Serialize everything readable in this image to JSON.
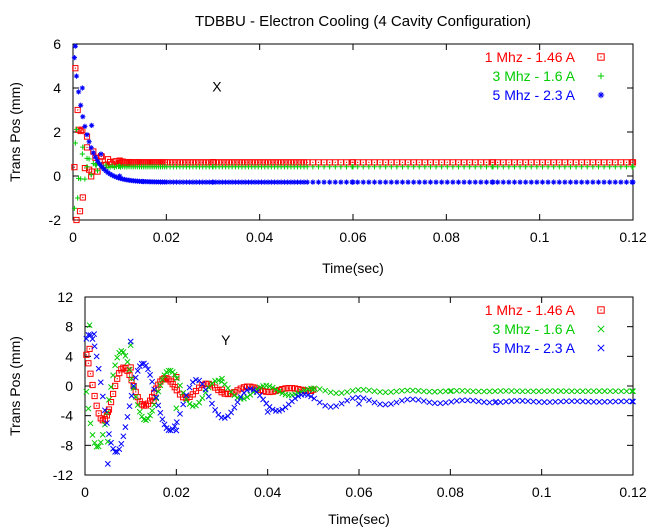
{
  "figure_title": "TDBBU - Electron Cooling (4 Cavity Configuration)",
  "chart_data": [
    {
      "type": "scatter",
      "panel_label": "X",
      "title": "TDBBU - Electron Cooling (4 Cavity Configuration)",
      "xlabel": "Time(sec)",
      "ylabel": "Trans Pos (mm)",
      "xlim": [
        0,
        0.12
      ],
      "ylim": [
        -2,
        6
      ],
      "xticks": [
        "0",
        "0.02",
        "0.04",
        "0.06",
        "0.08",
        "0.1",
        "0.12"
      ],
      "yticks": [
        "-2",
        "0",
        "2",
        "4",
        "6"
      ],
      "grid": false,
      "legend_position": "top-right",
      "series": [
        {
          "name": "1 Mhz - 1.46 A",
          "color": "#ff0000",
          "marker": "square",
          "model": {
            "kind": "decaying_oscillation",
            "steady": 0.62,
            "amp": 4.6,
            "tau": 0.0022,
            "freq": 650,
            "phase": 0.4,
            "x_end": 0.12
          },
          "points": [
            [
              0.0005,
              4.9
            ],
            [
              0.001,
              3.0
            ],
            [
              0.0015,
              -1.6
            ],
            [
              0.002,
              2.1
            ],
            [
              0.003,
              1.3
            ],
            [
              0.004,
              0.2
            ],
            [
              0.006,
              0.9
            ],
            [
              0.01,
              0.7
            ],
            [
              0.03,
              0.63
            ],
            [
              0.06,
              0.62
            ],
            [
              0.09,
              0.62
            ],
            [
              0.12,
              0.62
            ]
          ]
        },
        {
          "name": "3 Mhz - 1.6 A",
          "color": "#00cc00",
          "marker": "plus",
          "model": {
            "kind": "decaying_oscillation",
            "steady": 0.42,
            "amp": 2.6,
            "tau": 0.002,
            "freq": 800,
            "phase": 2.2,
            "x_end": 0.12
          },
          "points": [
            [
              0.0005,
              1.5
            ],
            [
              0.001,
              -1.0
            ],
            [
              0.002,
              1.0
            ],
            [
              0.003,
              0.8
            ],
            [
              0.005,
              0.5
            ],
            [
              0.01,
              0.45
            ],
            [
              0.03,
              0.42
            ],
            [
              0.06,
              0.42
            ],
            [
              0.09,
              0.42
            ],
            [
              0.12,
              0.42
            ]
          ]
        },
        {
          "name": "5 Mhz - 2.3 A",
          "color": "#0000ff",
          "marker": "star",
          "model": {
            "kind": "exponential_decay",
            "steady": -0.28,
            "amp": 6.3,
            "tau": 0.0028,
            "x_end": 0.12
          },
          "points": [
            [
              0.0005,
              5.9
            ],
            [
              0.002,
              4.0
            ],
            [
              0.004,
              2.3
            ],
            [
              0.006,
              1.0
            ],
            [
              0.01,
              0.0
            ],
            [
              0.015,
              -0.25
            ],
            [
              0.03,
              -0.28
            ],
            [
              0.06,
              -0.28
            ],
            [
              0.09,
              -0.28
            ],
            [
              0.12,
              -0.28
            ]
          ]
        }
      ]
    },
    {
      "type": "scatter",
      "panel_label": "Y",
      "title": "",
      "xlabel": "Time(sec)",
      "ylabel": "Trans Pos (mm)",
      "xlim": [
        0,
        0.12
      ],
      "ylim": [
        -12,
        12
      ],
      "xticks": [
        "0",
        "0.02",
        "0.04",
        "0.06",
        "0.08",
        "0.1",
        "0.12"
      ],
      "yticks": [
        "-12",
        "-8",
        "-4",
        "0",
        "4",
        "8",
        "12"
      ],
      "grid": false,
      "legend_position": "top-right",
      "series": [
        {
          "name": "1 Mhz - 1.46 A",
          "color": "#ff0000",
          "marker": "square",
          "model": {
            "kind": "decaying_oscillation",
            "steady": -0.5,
            "amp": 5.5,
            "tau": 0.014,
            "freq": 110,
            "phase": 0.3,
            "x_end": 0.05
          },
          "points": [
            [
              0.001,
              5.0
            ],
            [
              0.005,
              -3.5
            ],
            [
              0.01,
              2.5
            ],
            [
              0.015,
              -2.0
            ],
            [
              0.02,
              1.2
            ],
            [
              0.03,
              -0.5
            ],
            [
              0.05,
              -0.5
            ]
          ]
        },
        {
          "name": "3 Mhz - 1.6 A",
          "color": "#00cc00",
          "marker": "cross",
          "model": {
            "kind": "decaying_oscillation",
            "steady": -0.7,
            "amp": 9.0,
            "tau": 0.016,
            "freq": 95,
            "phase": 1.4,
            "x_end": 0.12
          },
          "points": [
            [
              0.001,
              8.2
            ],
            [
              0.005,
              -7.5
            ],
            [
              0.01,
              5.5
            ],
            [
              0.02,
              -3.0
            ],
            [
              0.03,
              1.0
            ],
            [
              0.05,
              -0.5
            ],
            [
              0.08,
              -0.7
            ],
            [
              0.12,
              -0.7
            ]
          ]
        },
        {
          "name": "5 Mhz - 2.3 A",
          "color": "#0000ff",
          "marker": "cross",
          "model": {
            "kind": "decaying_oscillation",
            "steady": -2.1,
            "amp": 9.5,
            "tau": 0.021,
            "freq": 85,
            "phase": -0.6,
            "x_end": 0.12
          },
          "points": [
            [
              0.002,
              7.0
            ],
            [
              0.005,
              -10.5
            ],
            [
              0.01,
              6.0
            ],
            [
              0.02,
              -6.0
            ],
            [
              0.04,
              -3.5
            ],
            [
              0.06,
              -2.4
            ],
            [
              0.09,
              -2.1
            ],
            [
              0.12,
              -2.1
            ]
          ]
        }
      ]
    }
  ]
}
